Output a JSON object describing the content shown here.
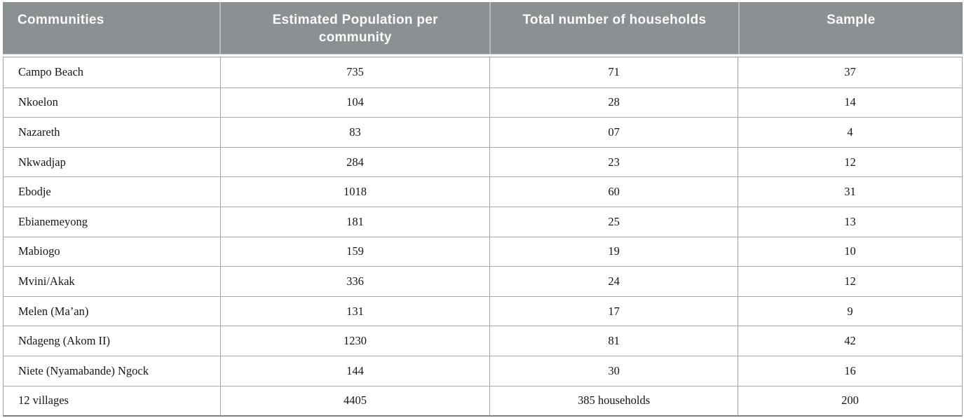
{
  "table": {
    "columns": [
      {
        "label": "Communities"
      },
      {
        "label": "Estimated Population per community"
      },
      {
        "label": "Total number of households"
      },
      {
        "label": "Sample"
      }
    ],
    "rows": [
      [
        "Campo Beach",
        "735",
        "71",
        "37"
      ],
      [
        "Nkoelon",
        "104",
        "28",
        "14"
      ],
      [
        "Nazareth",
        "83",
        "07",
        "4"
      ],
      [
        "Nkwadjap",
        "284",
        "23",
        "12"
      ],
      [
        "Ebodje",
        "1018",
        "60",
        "31"
      ],
      [
        "Ebianemeyong",
        "181",
        "25",
        "13"
      ],
      [
        "Mabiogo",
        "159",
        "19",
        "10"
      ],
      [
        "Mvini/Akak",
        "336",
        "24",
        "12"
      ],
      [
        "Melen (Ma’an)",
        "131",
        "17",
        "9"
      ],
      [
        "Ndageng (Akom II)",
        "1230",
        "81",
        "42"
      ],
      [
        "Niete (Nyamabande) Ngock",
        "144",
        "30",
        "16"
      ]
    ],
    "total_row": [
      "12 villages",
      "4405",
      "385 households",
      "200"
    ],
    "colors": {
      "header_bg": "#8b9093",
      "header_text": "#fbfbfb",
      "header_divider": "#b7babb",
      "border": "#9ea1a3",
      "row_divider": "#a7aaac",
      "border_bottom": "#7d8183",
      "row_text": "#161616"
    }
  }
}
